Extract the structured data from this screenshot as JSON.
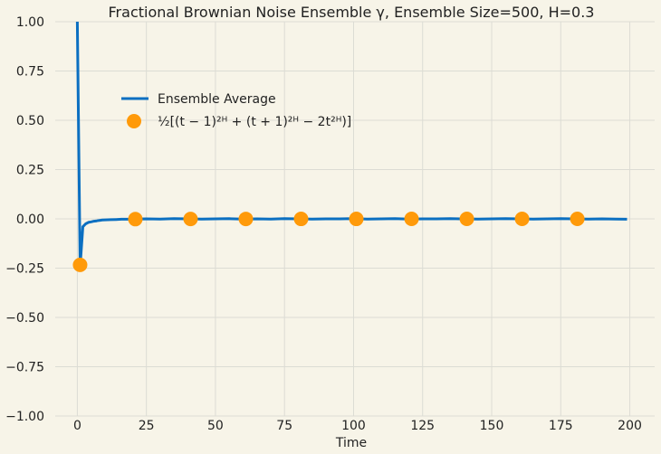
{
  "chart_data": {
    "type": "line",
    "title": "Fractional Brownian Noise Ensemble γ, Ensemble Size=500, H=0.3",
    "xlabel": "Time",
    "ylabel": "",
    "xlim": [
      -8,
      209
    ],
    "ylim": [
      -1.0,
      1.0
    ],
    "xticks": [
      0,
      25,
      50,
      75,
      100,
      125,
      150,
      175,
      200
    ],
    "xtick_labels": [
      "0",
      "25",
      "50",
      "75",
      "100",
      "125",
      "150",
      "175",
      "200"
    ],
    "yticks": [
      -1.0,
      -0.75,
      -0.5,
      -0.25,
      0.0,
      0.25,
      0.5,
      0.75,
      1.0
    ],
    "ytick_labels": [
      "−1.00",
      "−0.75",
      "−0.50",
      "−0.25",
      "0.00",
      "0.25",
      "0.50",
      "0.75",
      "1.00"
    ],
    "grid": true,
    "legend_placement": "upper-left",
    "series": [
      {
        "name": "Ensemble Average",
        "kind": "line",
        "color": "#0b6fc1",
        "x": [
          0,
          1,
          2,
          3,
          4,
          5,
          6,
          7,
          8,
          9,
          10,
          12,
          14,
          16,
          18,
          20,
          25,
          30,
          35,
          40,
          45,
          50,
          55,
          60,
          65,
          70,
          75,
          80,
          85,
          90,
          95,
          100,
          105,
          110,
          115,
          120,
          125,
          130,
          135,
          140,
          145,
          150,
          155,
          160,
          165,
          170,
          175,
          180,
          185,
          190,
          195,
          199
        ],
        "values": [
          1.0,
          -0.24,
          -0.04,
          -0.025,
          -0.018,
          -0.015,
          -0.012,
          -0.01,
          -0.008,
          -0.006,
          -0.005,
          -0.004,
          -0.003,
          -0.002,
          -0.002,
          -0.001,
          0.0,
          -0.001,
          0.001,
          0.0,
          -0.001,
          0.0,
          0.001,
          -0.001,
          0.0,
          -0.001,
          0.001,
          0.0,
          -0.001,
          0.0,
          0.0,
          0.001,
          -0.001,
          0.0,
          0.001,
          -0.001,
          0.0,
          0.0,
          0.001,
          0.0,
          -0.001,
          0.0,
          0.001,
          0.0,
          -0.001,
          0.0,
          0.001,
          0.0,
          -0.001,
          0.0,
          -0.001,
          -0.002
        ]
      },
      {
        "name": "½[(t − 1)²ᴴ + (t + 1)²ᴴ − 2t²ᴴ)]",
        "kind": "scatter",
        "color": "#ff9a0a",
        "x": [
          1,
          21,
          41,
          61,
          81,
          101,
          121,
          141,
          161,
          181
        ],
        "values": [
          -0.2334,
          -0.0014,
          -0.0006,
          -0.0003,
          -0.0002,
          -0.0002,
          -0.0001,
          -0.0001,
          -0.0001,
          -0.0001
        ]
      }
    ]
  }
}
